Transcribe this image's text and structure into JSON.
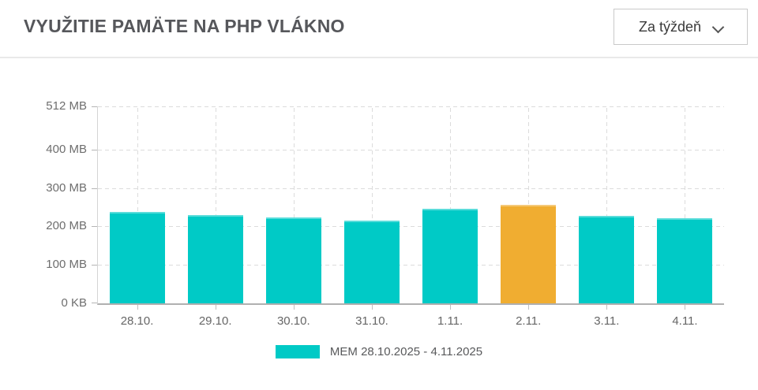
{
  "header": {
    "title": "VYUŽITIE PAMÄTE NA PHP VLÁKNO",
    "period_select": {
      "value": "Za týždeň",
      "icon": "chevron-down-icon"
    }
  },
  "chart_data": {
    "type": "bar",
    "title": "VYUŽITIE PAMÄTE NA PHP VLÁKNO",
    "categories": [
      "28.10.",
      "29.10.",
      "30.10.",
      "31.10.",
      "1.11.",
      "2.11.",
      "3.11.",
      "4.11."
    ],
    "series": [
      {
        "name": "MEM 28.10.2025 - 4.11.2025",
        "unit": "MB",
        "values": [
          237,
          229,
          223,
          215,
          246,
          256,
          228,
          222
        ]
      }
    ],
    "highlighted_category": "2.11.",
    "y_max": 512,
    "y_ticks": [
      {
        "value": 0,
        "label": "0 KB"
      },
      {
        "value": 100,
        "label": "100 MB"
      },
      {
        "value": 200,
        "label": "200 MB"
      },
      {
        "value": 300,
        "label": "300 MB"
      },
      {
        "value": 400,
        "label": "400 MB"
      },
      {
        "value": 512,
        "label": "512 MB"
      }
    ],
    "grid": "dashed",
    "legend_position": "bottom",
    "colors": {
      "bar": "#00CAC6",
      "bar_highlight": "#F0AD31"
    }
  }
}
